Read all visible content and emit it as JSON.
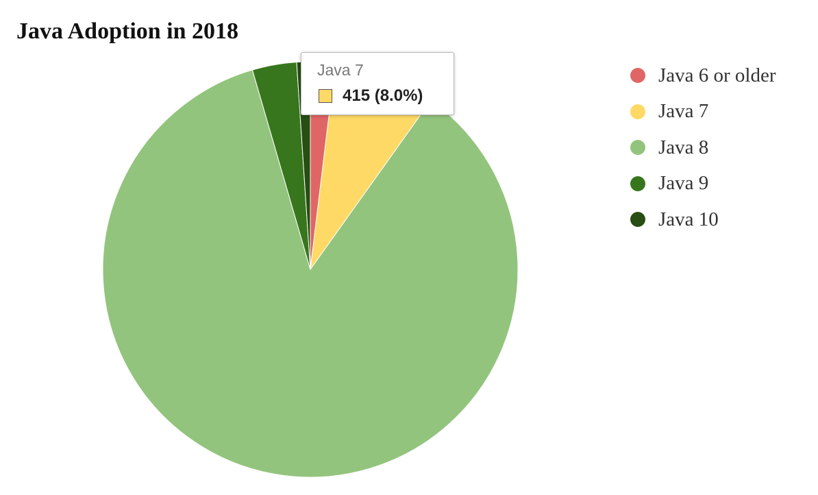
{
  "chart_data": {
    "type": "pie",
    "title": "Java Adoption in 2018",
    "categories": [
      "Java 6 or older",
      "Java 7",
      "Java 8",
      "Java 9",
      "Java 10"
    ],
    "values": [
      100,
      415,
      4470,
      180,
      55
    ],
    "colors": [
      "#e06666",
      "#ffd966",
      "#93c47d",
      "#38761d",
      "#274e13"
    ],
    "legend_position": "right",
    "start_angle_deg": 0,
    "direction": "clockwise",
    "tooltip": {
      "title": "Java 7",
      "value": "415 (8.0%)",
      "color": "#ffd966"
    }
  }
}
